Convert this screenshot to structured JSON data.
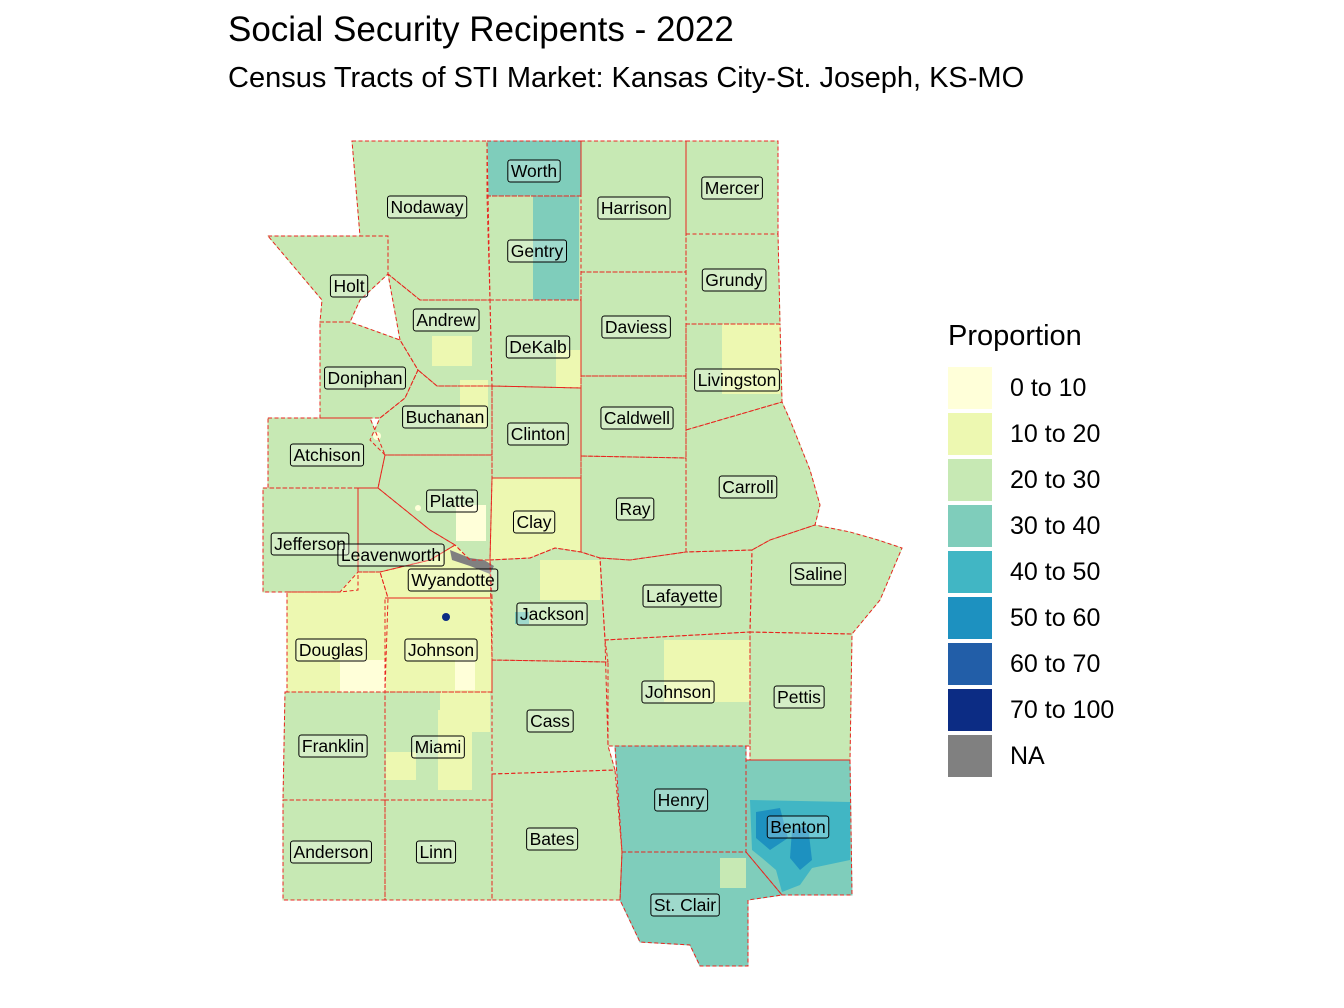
{
  "title": "Social Security Recipents - 2022",
  "subtitle": "Census Tracts of STI Market: Kansas City-St. Joseph, KS-MO",
  "legend": {
    "title": "Proportion",
    "items": [
      {
        "label": "0 to 10",
        "color": "#ffffd9"
      },
      {
        "label": "10 to 20",
        "color": "#edf8b1"
      },
      {
        "label": "20 to 30",
        "color": "#c7e9b4"
      },
      {
        "label": "30 to 40",
        "color": "#7fcdbb"
      },
      {
        "label": "40 to 50",
        "color": "#41b6c4"
      },
      {
        "label": "50 to 60",
        "color": "#1d91c0"
      },
      {
        "label": "60 to 70",
        "color": "#225ea8"
      },
      {
        "label": "70 to 100",
        "color": "#0c2c84"
      },
      {
        "label": "NA",
        "color": "#808080"
      }
    ]
  },
  "counties": [
    {
      "name": "Worth",
      "category": "30 to 40"
    },
    {
      "name": "Mercer",
      "category": "20 to 30"
    },
    {
      "name": "Nodaway",
      "category": "20 to 30"
    },
    {
      "name": "Harrison",
      "category": "20 to 30"
    },
    {
      "name": "Gentry",
      "category": "20 to 30"
    },
    {
      "name": "Grundy",
      "category": "20 to 30"
    },
    {
      "name": "Holt",
      "category": "20 to 30"
    },
    {
      "name": "Andrew",
      "category": "20 to 30"
    },
    {
      "name": "Daviess",
      "category": "20 to 30"
    },
    {
      "name": "DeKalb",
      "category": "20 to 30"
    },
    {
      "name": "Doniphan",
      "category": "20 to 30"
    },
    {
      "name": "Livingston",
      "category": "20 to 30"
    },
    {
      "name": "Buchanan",
      "category": "20 to 30"
    },
    {
      "name": "Caldwell",
      "category": "20 to 30"
    },
    {
      "name": "Clinton",
      "category": "20 to 30"
    },
    {
      "name": "Atchison",
      "category": "20 to 30"
    },
    {
      "name": "Carroll",
      "category": "20 to 30"
    },
    {
      "name": "Platte",
      "category": "20 to 30"
    },
    {
      "name": "Ray",
      "category": "20 to 30"
    },
    {
      "name": "Clay",
      "category": "10 to 20"
    },
    {
      "name": "Jefferson",
      "category": "20 to 30"
    },
    {
      "name": "Leavenworth",
      "category": "20 to 30"
    },
    {
      "name": "Wyandotte",
      "category": "10 to 20"
    },
    {
      "name": "Saline",
      "category": "20 to 30"
    },
    {
      "name": "Lafayette",
      "category": "20 to 30"
    },
    {
      "name": "Jackson",
      "category": "20 to 30"
    },
    {
      "name": "Douglas",
      "category": "10 to 20"
    },
    {
      "name": "Johnson",
      "category": "10 to 20"
    },
    {
      "name": "Johnson",
      "category": "20 to 30"
    },
    {
      "name": "Pettis",
      "category": "20 to 30"
    },
    {
      "name": "Cass",
      "category": "20 to 30"
    },
    {
      "name": "Franklin",
      "category": "20 to 30"
    },
    {
      "name": "Miami",
      "category": "20 to 30"
    },
    {
      "name": "Henry",
      "category": "30 to 40"
    },
    {
      "name": "Benton",
      "category": "30 to 40"
    },
    {
      "name": "Bates",
      "category": "20 to 30"
    },
    {
      "name": "Anderson",
      "category": "20 to 30"
    },
    {
      "name": "Linn",
      "category": "20 to 30"
    },
    {
      "name": "St. Clair",
      "category": "30 to 40"
    }
  ]
}
